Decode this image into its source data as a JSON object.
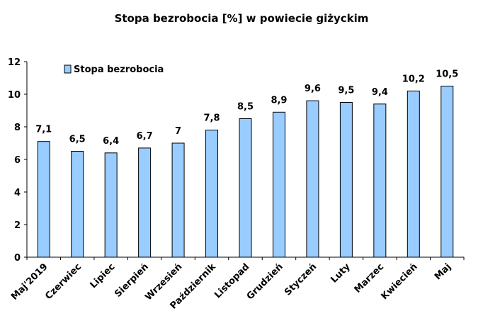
{
  "chart_data": {
    "type": "bar",
    "title": "Stopa bezrobocia [%] w powiecie giżyckim",
    "xlabel": "",
    "ylabel": "",
    "ylim": [
      0,
      12
    ],
    "yticks": [
      "0",
      "2",
      "4",
      "6",
      "8",
      "10",
      "12"
    ],
    "grid": false,
    "legend_position": "top-left",
    "bar_color": "#99ccff",
    "categories": [
      "Maj'2019",
      "Czerwiec",
      "Lipiec",
      "Sierpień",
      "Wrzesień",
      "Październik",
      "Listopad",
      "Grudzień",
      "Styczeń",
      "Luty",
      "Marzec",
      "Kwiecień",
      "Maj"
    ],
    "series": [
      {
        "name": "Stopa bezrobocia",
        "values": [
          7.1,
          6.5,
          6.4,
          6.7,
          7.0,
          7.8,
          8.5,
          8.9,
          9.6,
          9.5,
          9.4,
          10.2,
          10.5
        ],
        "labels": [
          "7,1",
          "6,5",
          "6,4",
          "6,7",
          "7",
          "7,8",
          "8,5",
          "8,9",
          "9,6",
          "9,5",
          "9,4",
          "10,2",
          "10,5"
        ]
      }
    ]
  }
}
